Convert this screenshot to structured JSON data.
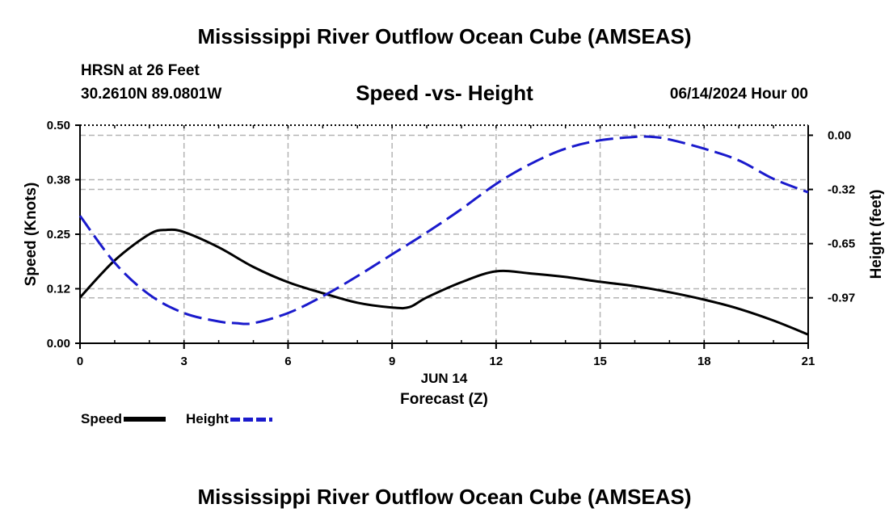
{
  "title": "Mississippi River Outflow Ocean Cube (AMSEAS)",
  "station": "HRSN at 26 Feet",
  "coordinates": "30.2610N  89.0801W",
  "subtitle": "Speed -vs- Height",
  "datetime": "06/14/2024 Hour 00",
  "bottom_title": "Mississippi River Outflow Ocean Cube (AMSEAS)",
  "legend": {
    "speed_label": "Speed",
    "height_label": "Height"
  },
  "colors": {
    "speed": "#000000",
    "height": "#1a1acc",
    "grid": "#b4b4b4"
  },
  "chart_data": {
    "type": "line",
    "title": "Speed -vs- Height",
    "xlabel": "Forecast (Z)",
    "xlabel_date": "JUN 14",
    "ylabel": "Speed (Knots)",
    "y2label": "Height (feet)",
    "xlim": [
      0,
      21
    ],
    "ylim": [
      0,
      0.5
    ],
    "y2lim": [
      -1.24,
      0.06
    ],
    "x_ticks": [
      0,
      3,
      6,
      9,
      12,
      15,
      18,
      21
    ],
    "x_tick_labels": [
      "0",
      "3",
      "6",
      "9",
      "12",
      "15",
      "18",
      "21"
    ],
    "y_ticks": [
      0,
      0.125,
      0.25,
      0.375,
      0.5
    ],
    "y_tick_labels": [
      "0.00",
      "0.12",
      "0.25",
      "0.38",
      "0.50"
    ],
    "y2_ticks": [
      0,
      -0.323,
      -0.646,
      -0.969
    ],
    "y2_tick_labels": [
      "0.00",
      "-0.32",
      "-0.65",
      "-0.97"
    ],
    "grid": true,
    "series": [
      {
        "name": "Speed",
        "axis": "left",
        "style": "solid",
        "x": [
          0,
          1,
          2,
          2.5,
          3,
          4,
          5,
          6,
          7,
          8,
          9,
          9.5,
          10,
          11,
          12,
          13,
          14,
          15,
          16,
          17,
          18,
          19,
          20,
          21
        ],
        "values": [
          0.105,
          0.19,
          0.25,
          0.26,
          0.255,
          0.22,
          0.175,
          0.14,
          0.115,
          0.093,
          0.082,
          0.083,
          0.105,
          0.14,
          0.165,
          0.16,
          0.152,
          0.141,
          0.131,
          0.117,
          0.1,
          0.079,
          0.052,
          0.02
        ]
      },
      {
        "name": "Height",
        "axis": "right",
        "style": "dashed",
        "x": [
          0,
          1,
          2,
          3,
          4,
          4.5,
          5,
          6,
          7,
          8,
          9,
          10,
          11,
          12,
          13,
          14,
          15,
          16,
          16.5,
          17,
          18,
          19,
          20,
          21
        ],
        "values": [
          -0.48,
          -0.76,
          -0.95,
          -1.06,
          -1.11,
          -1.12,
          -1.12,
          -1.06,
          -0.96,
          -0.84,
          -0.71,
          -0.58,
          -0.44,
          -0.29,
          -0.17,
          -0.08,
          -0.03,
          -0.01,
          -0.01,
          -0.025,
          -0.08,
          -0.15,
          -0.26,
          -0.34
        ]
      }
    ]
  }
}
